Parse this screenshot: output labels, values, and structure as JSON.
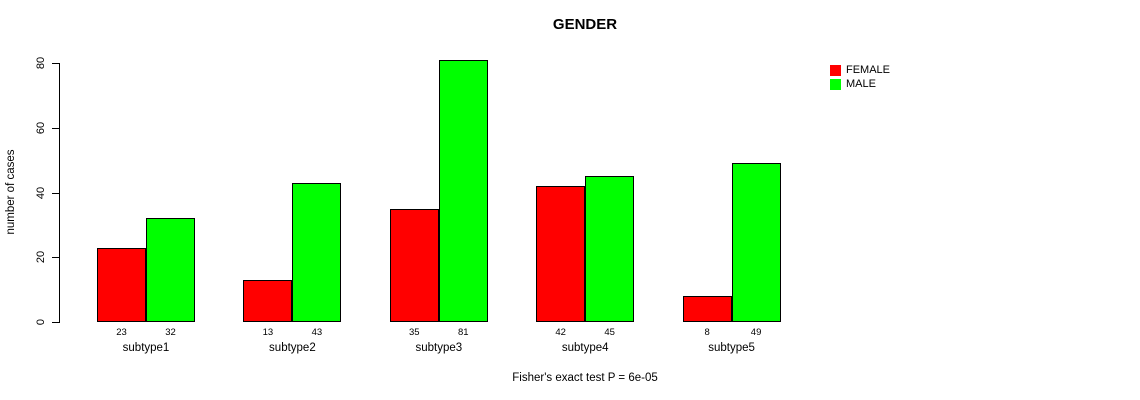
{
  "chart_data": {
    "type": "bar",
    "title": "GENDER",
    "ylabel": "number of cases",
    "xlabel": "",
    "categories": [
      "subtype1",
      "subtype2",
      "subtype3",
      "subtype4",
      "subtype5"
    ],
    "series": [
      {
        "name": "FEMALE",
        "color": "#ff0000",
        "values": [
          23,
          13,
          35,
          42,
          8
        ]
      },
      {
        "name": "MALE",
        "color": "#00ff00",
        "values": [
          32,
          43,
          81,
          45,
          49
        ]
      }
    ],
    "yticks": [
      0,
      20,
      40,
      60,
      80
    ],
    "ylim": [
      0,
      80
    ],
    "bar_value_labels": true,
    "grid": false,
    "legend_position": "top-right",
    "caption": "Fisher's exact test P = 6e-05"
  }
}
